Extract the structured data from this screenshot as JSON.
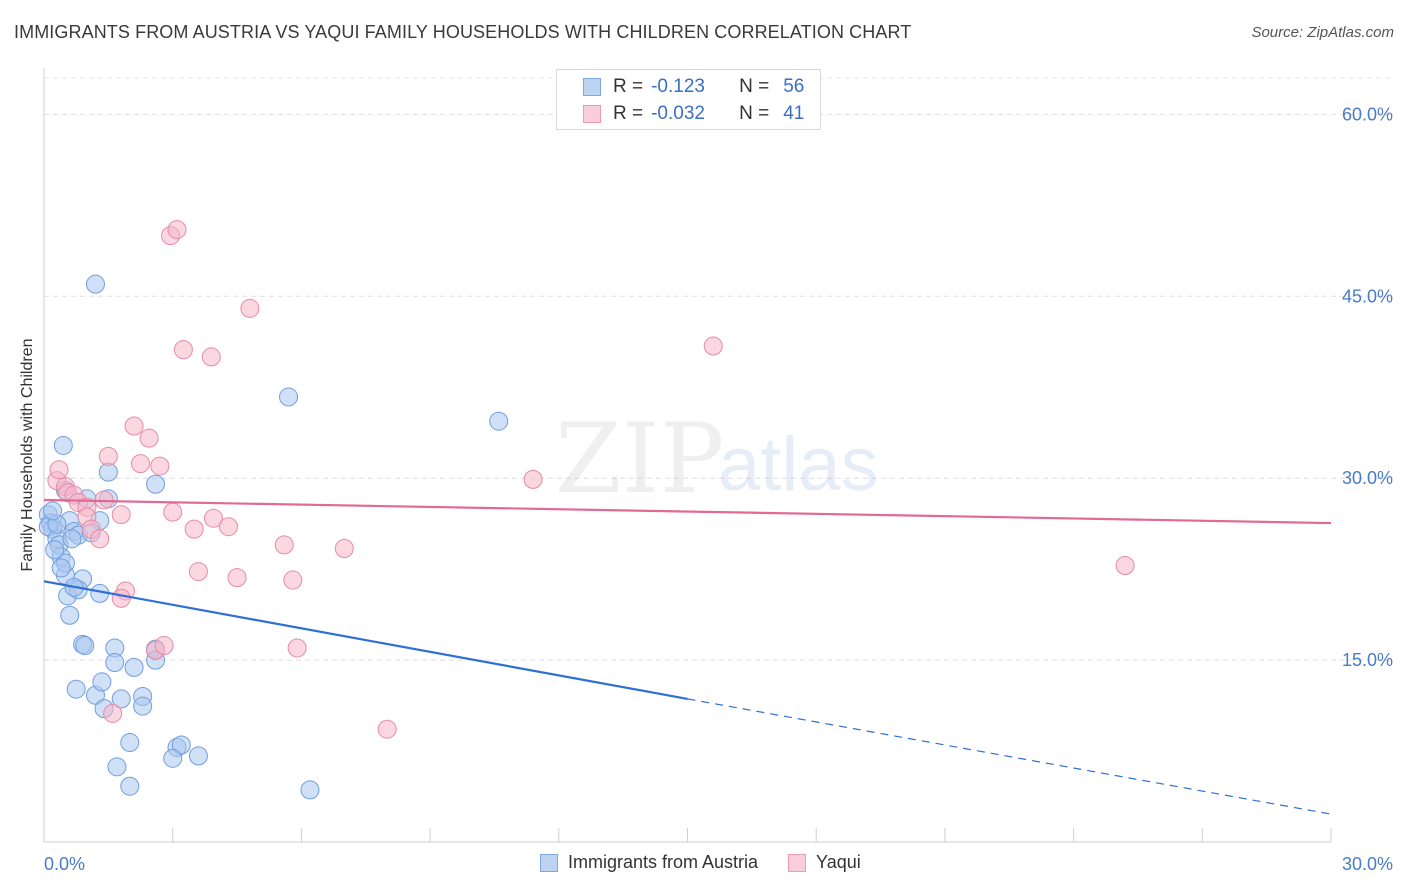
{
  "header": {
    "title": "IMMIGRANTS FROM AUSTRIA VS YAQUI FAMILY HOUSEHOLDS WITH CHILDREN CORRELATION CHART",
    "source": "Source: ZipAtlas.com"
  },
  "watermark": {
    "zip": "ZIP",
    "atlas": "atlas"
  },
  "legend": {
    "rows": [
      {
        "r_label": "R =",
        "r_value": "-0.123",
        "n_label": "N =",
        "n_value": "56",
        "color": "#a9c7ef"
      },
      {
        "r_label": "R =",
        "r_value": "-0.032",
        "n_label": "N =",
        "n_value": "41",
        "color": "#f6b7c9"
      }
    ]
  },
  "bottom_legend": {
    "items": [
      {
        "label": "Immigrants from Austria",
        "color": "#a9c7ef"
      },
      {
        "label": "Yaqui",
        "color": "#f6b7c9"
      }
    ]
  },
  "chart_data": {
    "type": "scatter",
    "title": "IMMIGRANTS FROM AUSTRIA VS YAQUI FAMILY HOUSEHOLDS WITH CHILDREN CORRELATION CHART",
    "xlabel": "",
    "ylabel": "Family Households with Children",
    "xlim": [
      0,
      30
    ],
    "ylim": [
      0,
      63
    ],
    "x_tick_labels": [
      "0.0%",
      "30.0%"
    ],
    "y_ticks": [
      15,
      30,
      45,
      60
    ],
    "y_tick_labels": [
      "15.0%",
      "30.0%",
      "45.0%",
      "60.0%"
    ],
    "grid": true,
    "series": [
      {
        "name": "Immigrants from Austria",
        "color": "#a9c7ef",
        "stroke": "#6f9fde",
        "points": [
          [
            0.1,
            27.0
          ],
          [
            0.15,
            26.3
          ],
          [
            0.2,
            25.8
          ],
          [
            0.1,
            26.0
          ],
          [
            0.3,
            25.0
          ],
          [
            0.35,
            24.5
          ],
          [
            0.4,
            23.5
          ],
          [
            0.5,
            22.0
          ],
          [
            0.5,
            29.0
          ],
          [
            0.45,
            32.7
          ],
          [
            0.6,
            26.5
          ],
          [
            0.7,
            25.6
          ],
          [
            0.8,
            25.3
          ],
          [
            0.65,
            25.0
          ],
          [
            0.9,
            21.7
          ],
          [
            0.55,
            20.3
          ],
          [
            0.5,
            23.0
          ],
          [
            0.6,
            18.7
          ],
          [
            1.2,
            46.0
          ],
          [
            1.5,
            28.3
          ],
          [
            1.5,
            30.5
          ],
          [
            1.3,
            26.5
          ],
          [
            1.0,
            28.3
          ],
          [
            0.8,
            20.8
          ],
          [
            1.3,
            20.5
          ],
          [
            0.9,
            16.3
          ],
          [
            0.95,
            16.2
          ],
          [
            1.65,
            16.0
          ],
          [
            1.65,
            14.8
          ],
          [
            2.1,
            14.4
          ],
          [
            2.6,
            15.9
          ],
          [
            2.6,
            15.0
          ],
          [
            0.75,
            12.6
          ],
          [
            1.2,
            12.1
          ],
          [
            1.35,
            13.2
          ],
          [
            1.8,
            11.8
          ],
          [
            2.3,
            12.0
          ],
          [
            2.3,
            11.2
          ],
          [
            1.4,
            11.0
          ],
          [
            2.0,
            8.2
          ],
          [
            3.1,
            7.8
          ],
          [
            3.2,
            8.0
          ],
          [
            3.6,
            7.1
          ],
          [
            3.0,
            6.9
          ],
          [
            1.7,
            6.2
          ],
          [
            2.0,
            4.6
          ],
          [
            2.6,
            29.5
          ],
          [
            5.7,
            36.7
          ],
          [
            6.2,
            4.3
          ],
          [
            10.6,
            34.7
          ],
          [
            0.3,
            26.2
          ],
          [
            0.2,
            27.3
          ],
          [
            0.7,
            21.0
          ],
          [
            1.1,
            25.5
          ],
          [
            0.4,
            22.6
          ],
          [
            0.25,
            24.1
          ]
        ],
        "trend": {
          "x0": 0,
          "y0": 21.5,
          "x1": 15,
          "y1": 11.8,
          "x_dash_end": 30,
          "y_dash_end": 2.3
        }
      },
      {
        "name": "Yaqui",
        "color": "#f6b7c9",
        "stroke": "#e88aa6",
        "points": [
          [
            0.3,
            29.8
          ],
          [
            0.35,
            30.7
          ],
          [
            0.5,
            29.3
          ],
          [
            0.55,
            28.8
          ],
          [
            0.7,
            28.6
          ],
          [
            0.8,
            28.0
          ],
          [
            1.0,
            27.6
          ],
          [
            1.0,
            26.8
          ],
          [
            1.1,
            25.8
          ],
          [
            1.3,
            25.0
          ],
          [
            1.4,
            28.2
          ],
          [
            1.5,
            31.8
          ],
          [
            1.8,
            27.0
          ],
          [
            2.1,
            34.3
          ],
          [
            2.25,
            31.2
          ],
          [
            2.45,
            33.3
          ],
          [
            2.7,
            31.0
          ],
          [
            2.95,
            50.0
          ],
          [
            3.1,
            50.5
          ],
          [
            3.0,
            27.2
          ],
          [
            3.25,
            40.6
          ],
          [
            3.5,
            25.8
          ],
          [
            3.6,
            22.3
          ],
          [
            3.9,
            40.0
          ],
          [
            3.95,
            26.7
          ],
          [
            4.3,
            26.0
          ],
          [
            4.5,
            21.8
          ],
          [
            4.8,
            44.0
          ],
          [
            5.6,
            24.5
          ],
          [
            5.8,
            21.6
          ],
          [
            5.9,
            16.0
          ],
          [
            7.0,
            24.2
          ],
          [
            8.0,
            9.3
          ],
          [
            11.4,
            29.9
          ],
          [
            15.6,
            40.9
          ],
          [
            25.2,
            22.8
          ],
          [
            1.9,
            20.7
          ],
          [
            1.8,
            20.1
          ],
          [
            2.6,
            15.8
          ],
          [
            2.8,
            16.2
          ],
          [
            1.6,
            10.6
          ]
        ],
        "trend": {
          "x0": 0,
          "y0": 28.2,
          "x1": 30,
          "y1": 26.3
        }
      }
    ]
  }
}
